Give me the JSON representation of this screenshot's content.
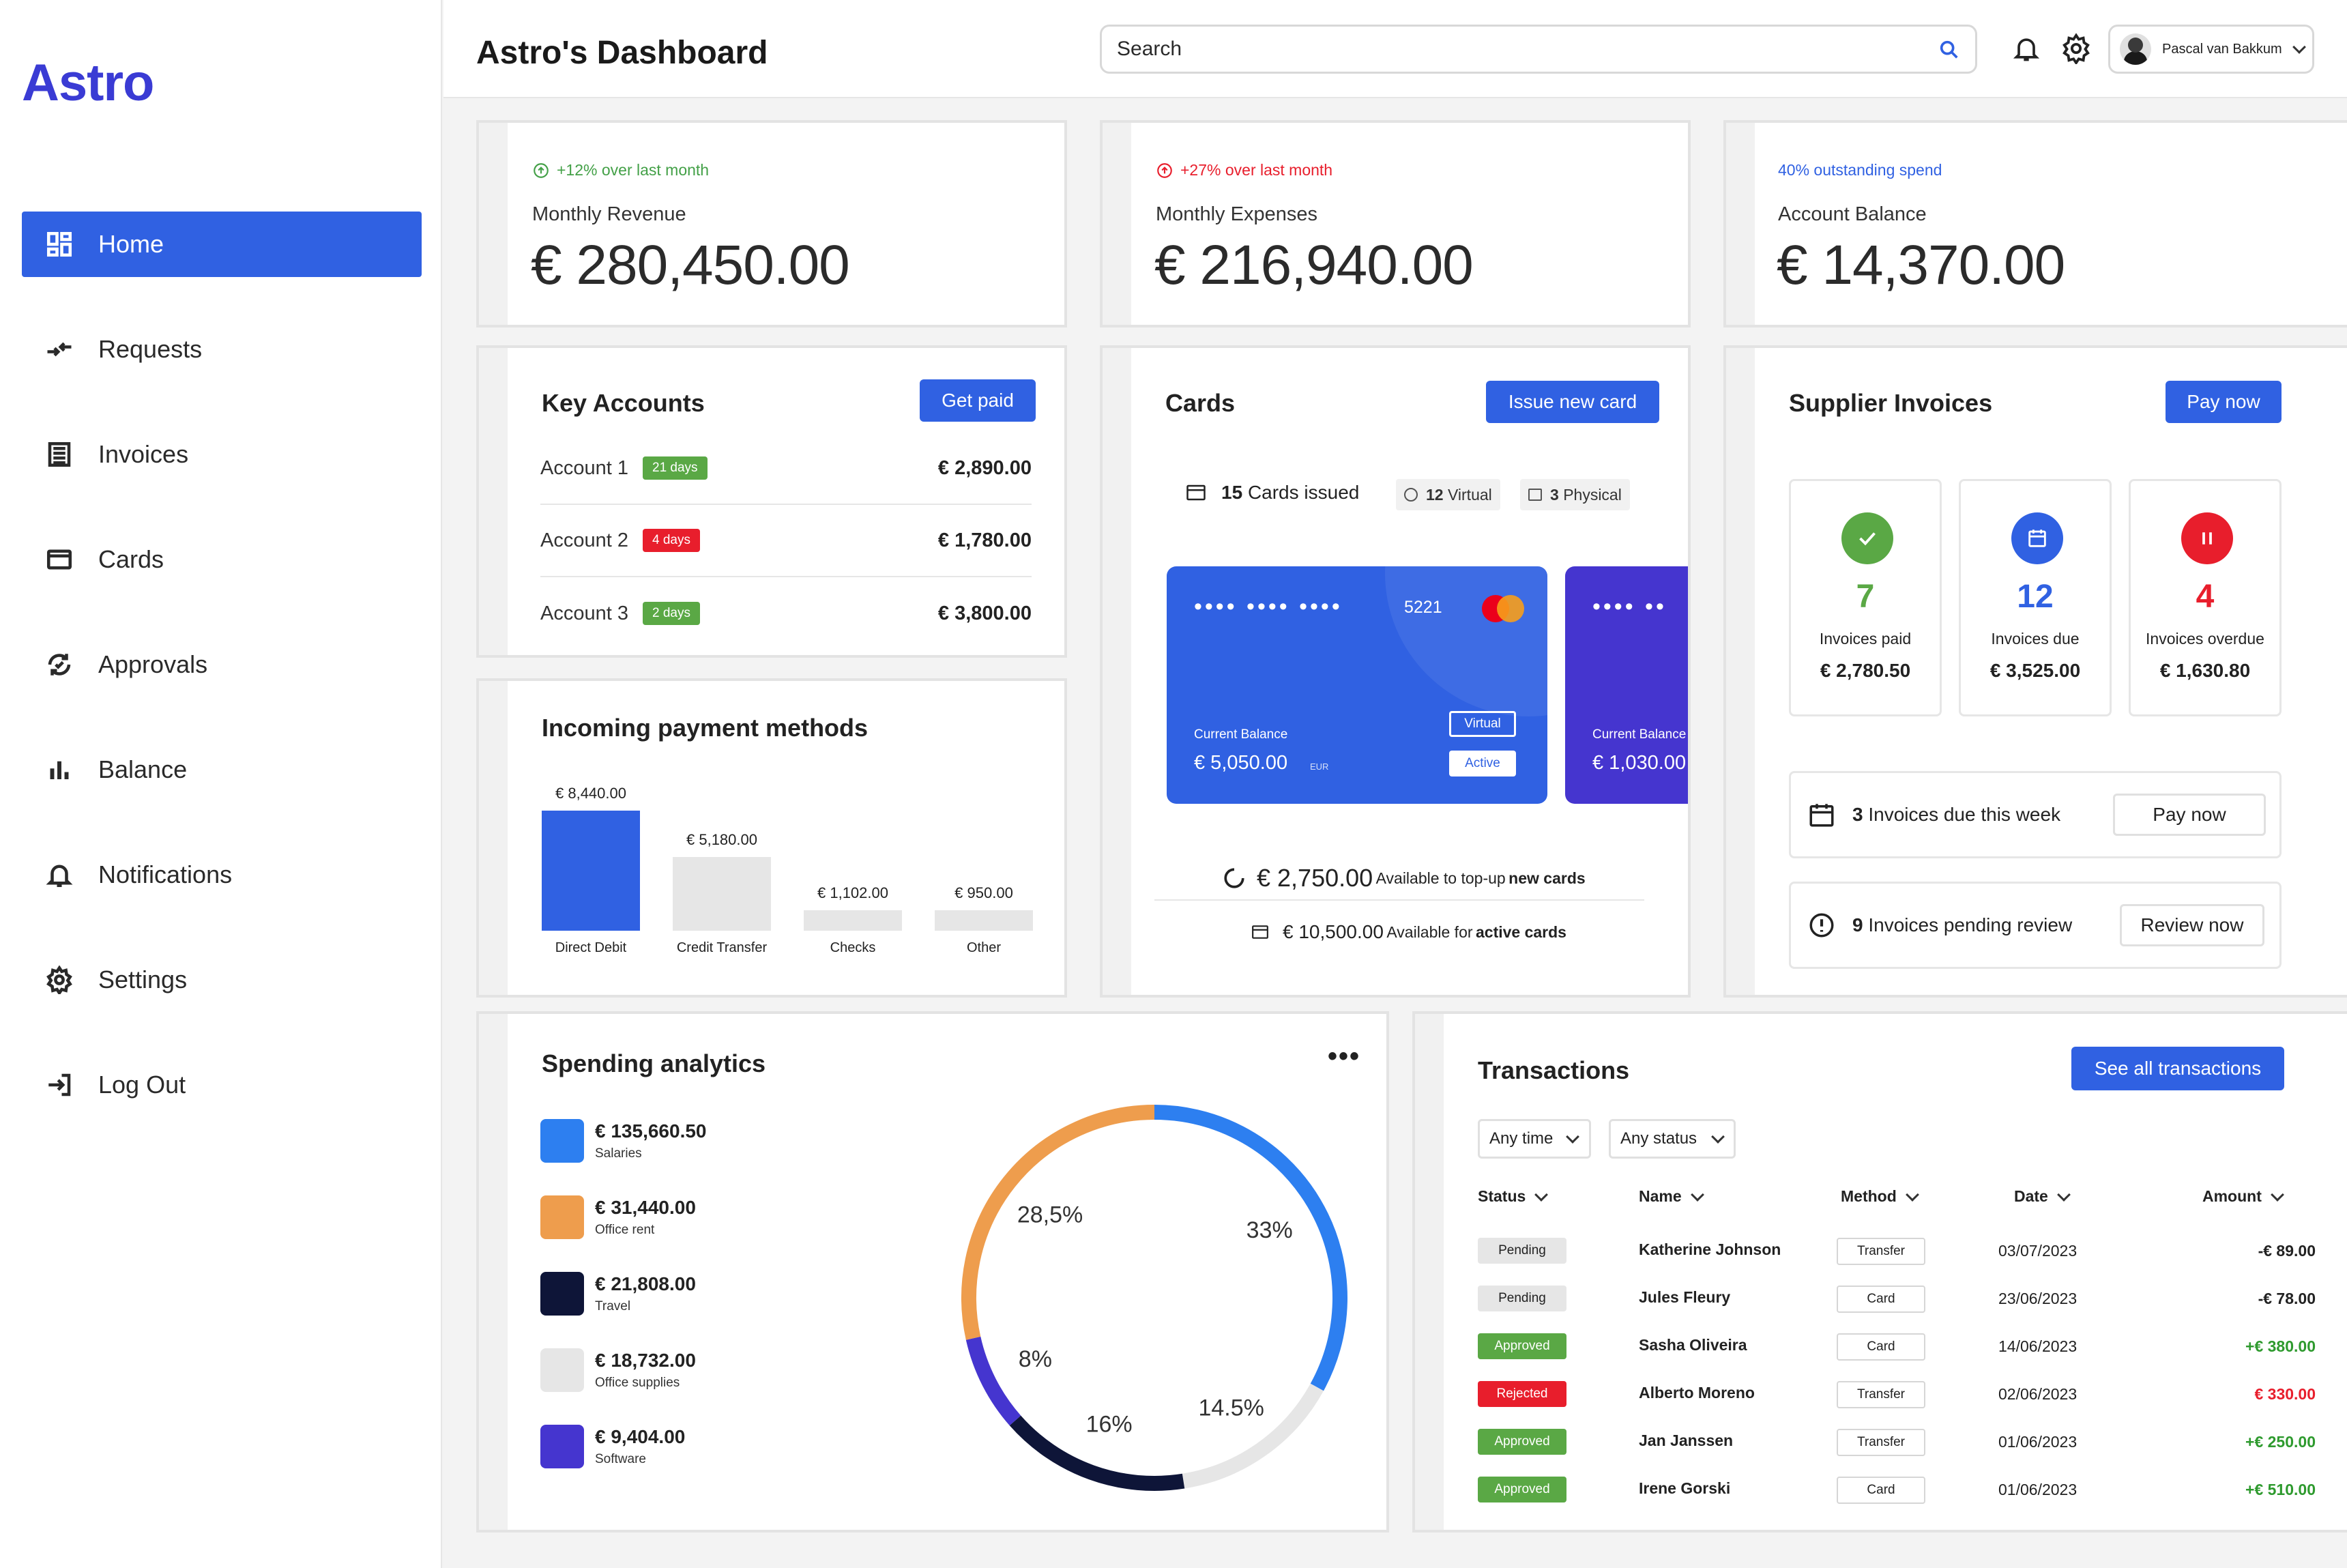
{
  "app": {
    "logo": "Astro",
    "page_title": "Astro's Dashboard"
  },
  "header": {
    "search_placeholder": "Search",
    "user_name": "Pascal van Bakkum"
  },
  "sidebar": {
    "items": [
      {
        "label": "Home",
        "icon": "dashboard-icon",
        "active": true
      },
      {
        "label": "Requests",
        "icon": "transfer-arrows-icon"
      },
      {
        "label": "Invoices",
        "icon": "list-document-icon"
      },
      {
        "label": "Cards",
        "icon": "credit-card-icon"
      },
      {
        "label": "Approvals",
        "icon": "refresh-check-icon"
      },
      {
        "label": "Balance",
        "icon": "bar-chart-icon"
      },
      {
        "label": "Notifications",
        "icon": "bell-icon"
      },
      {
        "label": "Settings",
        "icon": "gear-icon"
      },
      {
        "label": "Log Out",
        "icon": "logout-icon"
      }
    ]
  },
  "kpis": [
    {
      "note": "+12% over last month",
      "label": "Monthly Revenue",
      "value": "€ 280,450.00",
      "color": "#43a047"
    },
    {
      "note": "+27% over last month",
      "label": "Monthly Expenses",
      "value": "€ 216,940.00",
      "color": "#e81e2c"
    },
    {
      "note": "40% outstanding spend",
      "label": "Account Balance",
      "value": "€ 14,370.00",
      "color": "#3061e2"
    }
  ],
  "key_accounts": {
    "title": "Key Accounts",
    "button": "Get paid",
    "rows": [
      {
        "name": "Account 1",
        "badge": "21 days",
        "amount": "€ 2,890.00"
      },
      {
        "name": "Account 2",
        "badge": "4 days",
        "amount": "€ 1,780.00"
      },
      {
        "name": "Account 3",
        "badge": "2 days",
        "amount": "€ 3,800.00"
      }
    ]
  },
  "payment_methods": {
    "title": "Incoming payment methods",
    "bars": [
      {
        "label": "Direct Debit",
        "value_text": "€ 8,440.00",
        "value": 8440
      },
      {
        "label": "Credit Transfer",
        "value_text": "€ 5,180.00",
        "value": 5180
      },
      {
        "label": "Checks",
        "value_text": "€ 1,102.00",
        "value": 1102
      },
      {
        "label": "Other",
        "value_text": "€ 950.00",
        "value": 950
      }
    ]
  },
  "cards": {
    "title": "Cards",
    "button": "Issue new card",
    "issued_count": "15",
    "issued_label": "Cards issued",
    "virtual_count": "12",
    "virtual_label": "Virtual",
    "physical_count": "3",
    "physical_label": "Physical",
    "card1": {
      "dots": "•••• •••• ••••",
      "last4": "5221",
      "balance_label": "Current Balance",
      "balance": "€ 5,050.00",
      "currency": "EUR",
      "tag1": "Virtual",
      "tag2": "Active"
    },
    "card2": {
      "dots": "•••• ••",
      "balance_label": "Current Balance",
      "balance": "€ 1,030.00"
    },
    "topup_amount": "€ 2,750.00",
    "topup_text": "Available to top-up",
    "topup_bold": "new cards",
    "active_amount": "€ 10,500.00",
    "active_text": "Available for",
    "active_bold": "active cards"
  },
  "supplier_invoices": {
    "title": "Supplier Invoices",
    "button": "Pay now",
    "boxes": [
      {
        "num": "7",
        "label": "Invoices paid",
        "amount": "€ 2,780.50",
        "color": "#5aa845"
      },
      {
        "num": "12",
        "label": "Invoices due",
        "amount": "€ 3,525.00",
        "color": "#3061e2"
      },
      {
        "num": "4",
        "label": "Invoices overdue",
        "amount": "€ 1,630.80",
        "color": "#e81e2c"
      }
    ],
    "due_count": "3",
    "due_text": "Invoices due this week",
    "due_button": "Pay now",
    "review_count": "9",
    "review_text": "Invoices pending review",
    "review_button": "Review now"
  },
  "spending": {
    "title": "Spending analytics",
    "items": [
      {
        "amount": "€ 135,660.50",
        "label": "Salaries",
        "color": "#2d7ff0"
      },
      {
        "amount": "€ 31,440.00",
        "label": "Office rent",
        "color": "#ee9d4d"
      },
      {
        "amount": "€ 21,808.00",
        "label": "Travel",
        "color": "#0e1538"
      },
      {
        "amount": "€ 18,732.00",
        "label": "Office supplies",
        "color": "#e6e6e6"
      },
      {
        "amount": "€ 9,404.00",
        "label": "Software",
        "color": "#4535cf"
      }
    ]
  },
  "chart_data": {
    "type": "pie",
    "labels": [
      "Salaries",
      "Office supplies",
      "Travel",
      "Software",
      "Office rent"
    ],
    "values": [
      33,
      14.5,
      16,
      8,
      28.5
    ],
    "value_labels": [
      "33%",
      "14.5%",
      "16%",
      "8%",
      "28,5%"
    ],
    "colors": [
      "#2d7ff0",
      "#e6e6e6",
      "#0e1538",
      "#4535cf",
      "#ee9d4d"
    ]
  },
  "transactions": {
    "title": "Transactions",
    "button": "See all transactions",
    "filter_time": "Any time",
    "filter_status": "Any status",
    "columns": [
      "Status",
      "Name",
      "Method",
      "Date",
      "Amount"
    ],
    "rows": [
      {
        "status": "Pending",
        "name": "Katherine Johnson",
        "method": "Transfer",
        "date": "03/07/2023",
        "amount": "-€ 89.00"
      },
      {
        "status": "Pending",
        "name": "Jules Fleury",
        "method": "Card",
        "date": "23/06/2023",
        "amount": "-€ 78.00"
      },
      {
        "status": "Approved",
        "name": "Sasha Oliveira",
        "method": "Card",
        "date": "14/06/2023",
        "amount": "+€ 380.00"
      },
      {
        "status": "Rejected",
        "name": "Alberto Moreno",
        "method": "Transfer",
        "date": "02/06/2023",
        "amount": "€ 330.00"
      },
      {
        "status": "Approved",
        "name": "Jan Janssen",
        "method": "Transfer",
        "date": "01/06/2023",
        "amount": "+€ 250.00"
      },
      {
        "status": "Approved",
        "name": "Irene Gorski",
        "method": "Card",
        "date": "01/06/2023",
        "amount": "+€ 510.00"
      }
    ]
  }
}
